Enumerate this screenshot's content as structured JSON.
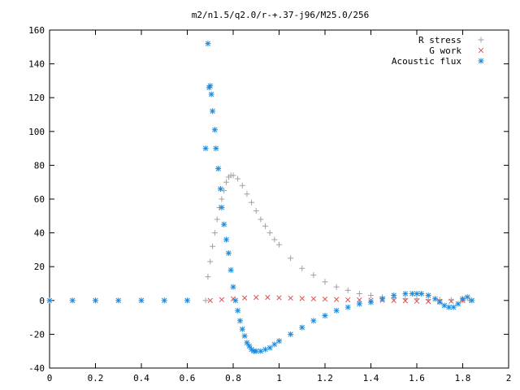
{
  "chart_data": {
    "type": "scatter",
    "title": "m2/n1.5/q2.0/r-+.37-j96/M25.0/256",
    "xlabel": "",
    "ylabel": "",
    "xlim": [
      0,
      2
    ],
    "ylim": [
      -40,
      160
    ],
    "xticks": [
      "0",
      "0.2",
      "0.4",
      "0.6",
      "0.8",
      "1",
      "1.2",
      "1.4",
      "1.6",
      "1.8",
      "2"
    ],
    "yticks": [
      "-40",
      "-20",
      "0",
      "20",
      "40",
      "60",
      "80",
      "100",
      "120",
      "140",
      "160"
    ],
    "grid": false,
    "legend_position": "top-right",
    "series": [
      {
        "name": "R stress",
        "marker": "plus",
        "color": "#a0a0a0",
        "x": [
          0.68,
          0.69,
          0.7,
          0.71,
          0.72,
          0.73,
          0.74,
          0.75,
          0.76,
          0.77,
          0.78,
          0.79,
          0.8,
          0.82,
          0.84,
          0.86,
          0.88,
          0.9,
          0.92,
          0.94,
          0.96,
          0.98,
          1.0,
          1.05,
          1.1,
          1.15,
          1.2,
          1.25,
          1.3,
          1.35,
          1.4,
          1.45,
          1.5,
          1.55,
          1.6,
          1.65,
          1.7,
          1.75,
          1.8,
          1.83
        ],
        "y": [
          0,
          14,
          23,
          32,
          40,
          48,
          55,
          60,
          65,
          70,
          73,
          74,
          74,
          72,
          68,
          63,
          58,
          53,
          48,
          44,
          40,
          36,
          33,
          25,
          19,
          15,
          11,
          8,
          6,
          4,
          3,
          2,
          1.5,
          1,
          1,
          0.5,
          0.5,
          0.3,
          0.2,
          0
        ]
      },
      {
        "name": "G work",
        "marker": "cross",
        "color": "#e05050",
        "x": [
          0.7,
          0.75,
          0.8,
          0.85,
          0.9,
          0.95,
          1.0,
          1.05,
          1.1,
          1.15,
          1.2,
          1.25,
          1.3,
          1.35,
          1.4,
          1.45,
          1.5,
          1.55,
          1.6,
          1.65,
          1.7,
          1.75,
          1.8
        ],
        "y": [
          0,
          0.5,
          1,
          1.5,
          1.8,
          1.8,
          1.6,
          1.4,
          1.2,
          1.0,
          0.8,
          0.6,
          0.4,
          0.3,
          0.2,
          0.1,
          0,
          -0.2,
          -0.4,
          -0.6,
          -0.6,
          -0.4,
          0
        ]
      },
      {
        "name": "Acoustic flux",
        "marker": "star",
        "color": "#1a8ce0",
        "x": [
          0,
          0.1,
          0.2,
          0.3,
          0.4,
          0.5,
          0.6,
          0.68,
          0.69,
          0.695,
          0.7,
          0.705,
          0.71,
          0.72,
          0.725,
          0.735,
          0.745,
          0.75,
          0.76,
          0.77,
          0.78,
          0.79,
          0.8,
          0.81,
          0.82,
          0.83,
          0.84,
          0.85,
          0.86,
          0.87,
          0.88,
          0.89,
          0.9,
          0.92,
          0.94,
          0.96,
          0.98,
          1.0,
          1.05,
          1.1,
          1.15,
          1.2,
          1.25,
          1.3,
          1.35,
          1.4,
          1.45,
          1.5,
          1.55,
          1.58,
          1.6,
          1.62,
          1.65,
          1.68,
          1.7,
          1.72,
          1.74,
          1.76,
          1.78,
          1.8,
          1.82,
          1.84
        ],
        "y": [
          0,
          0,
          0,
          0,
          0,
          0,
          0,
          90,
          152,
          126,
          127,
          122,
          112,
          101,
          90,
          78,
          66,
          55,
          45,
          36,
          28,
          18,
          8,
          0,
          -6,
          -12,
          -17,
          -21,
          -25,
          -27,
          -29,
          -30,
          -30,
          -30,
          -29,
          -28,
          -26,
          -24,
          -20,
          -16,
          -12,
          -9,
          -6,
          -4,
          -2,
          -1,
          1,
          3,
          4,
          4,
          4,
          4,
          3,
          1,
          -1,
          -3,
          -4,
          -4,
          -2,
          1,
          2,
          0
        ]
      }
    ]
  }
}
